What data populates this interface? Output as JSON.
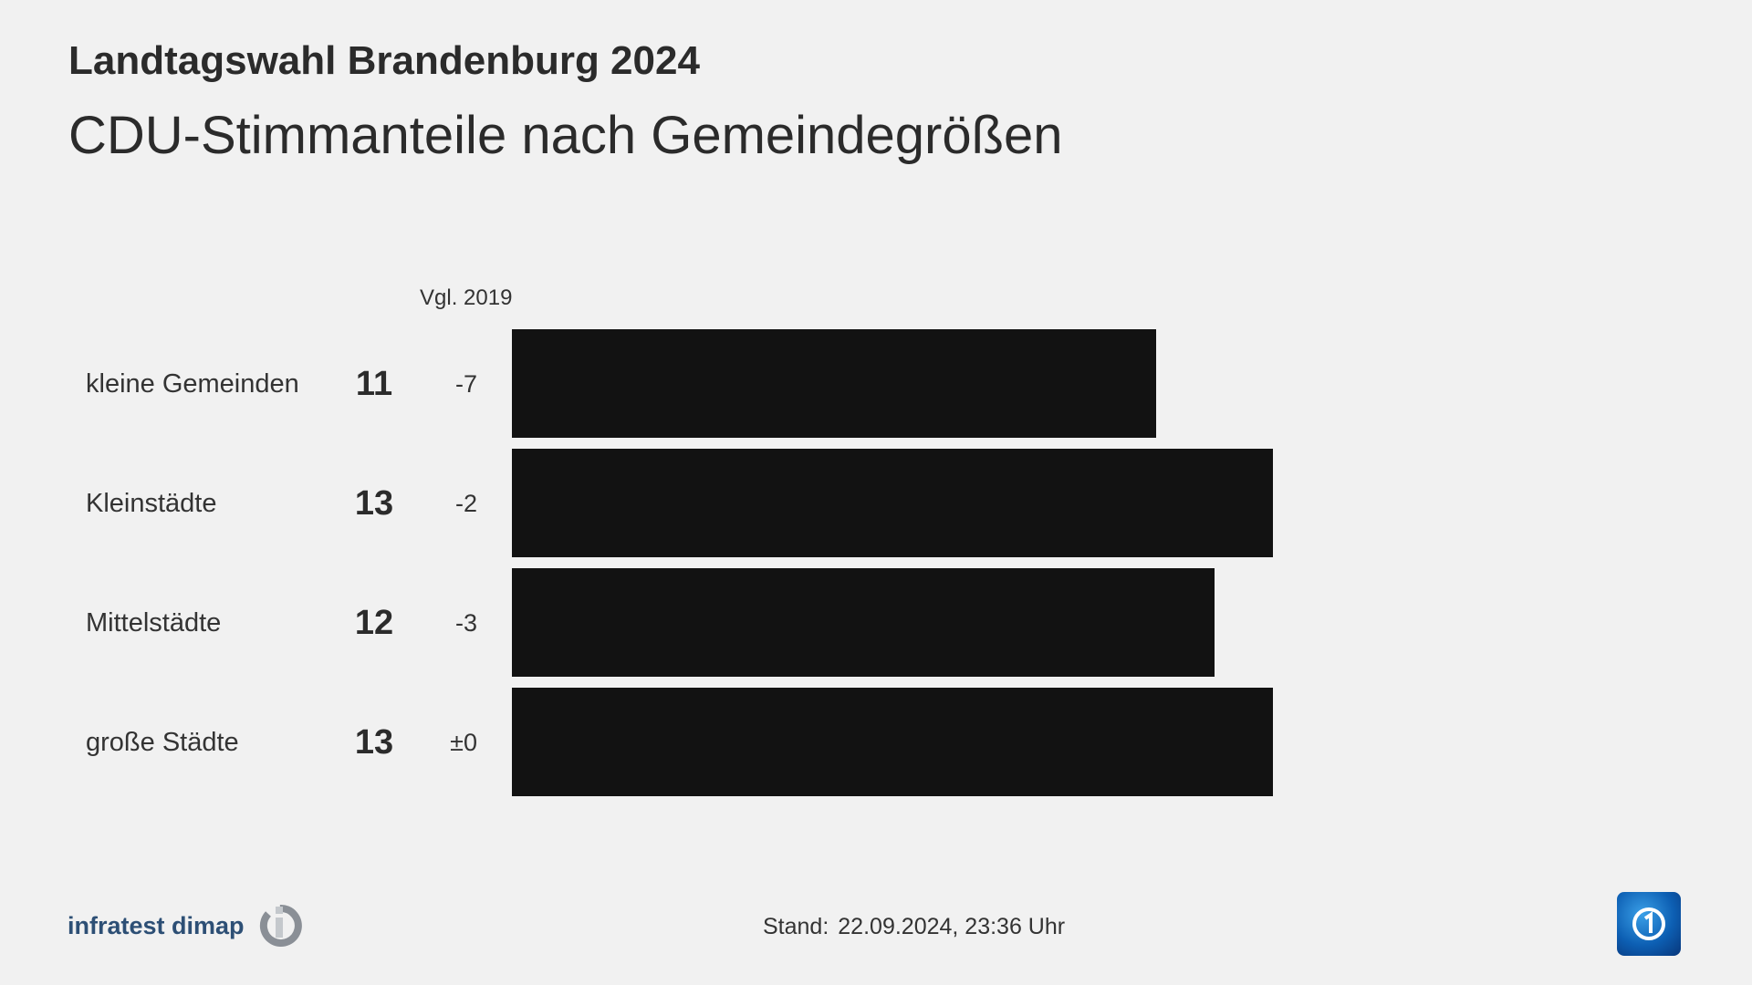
{
  "title": "Landtagswahl Brandenburg 2024",
  "subtitle": "CDU-Stimmanteile nach Gemeindegrößen",
  "vgl_label": "Vgl. 2019",
  "chart_data": {
    "type": "bar",
    "orientation": "horizontal",
    "categories": [
      "kleine Gemeinden",
      "Kleinstädte",
      "Mittelstädte",
      "große Städte"
    ],
    "values": [
      11,
      13,
      12,
      13
    ],
    "changes": [
      "-7",
      "-2",
      "-3",
      "±0"
    ],
    "change_header": "Vgl. 2019",
    "bar_color": "#121212",
    "xlim": [
      0,
      13
    ]
  },
  "footer": {
    "source_logo": "infratest dimap",
    "stand_label": "Stand:",
    "stand_value": "22.09.2024, 23:36 Uhr"
  },
  "broadcaster_logo": "ARD Das Erste"
}
